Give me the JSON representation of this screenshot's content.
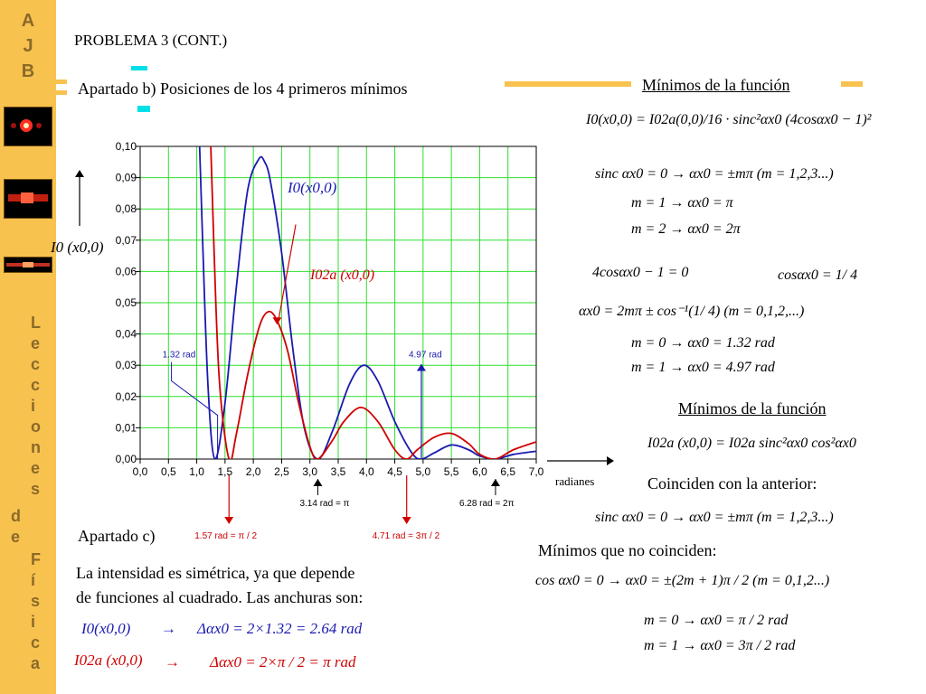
{
  "sidebar": {
    "logo_letters": [
      "A",
      "J",
      "B"
    ],
    "vertical_text": [
      "L",
      "e",
      "c",
      "c",
      "i",
      "o",
      "n",
      "e",
      "s",
      "d",
      "e",
      "F",
      "í",
      "s",
      "i",
      "c",
      "a"
    ]
  },
  "header": {
    "title": "PROBLEMA 3 (CONT.)",
    "section_b": "Apartado b) Posiciones de los 4 primeros mínimos"
  },
  "chart_data": {
    "type": "line",
    "xlabel": "radianes",
    "ylabel": "I0(x0,0)",
    "xlim": [
      0,
      7
    ],
    "ylim": [
      0,
      0.1
    ],
    "x_ticks": [
      "0,0",
      "0,5",
      "1,0",
      "1,5",
      "2,0",
      "2,5",
      "3,0",
      "3,5",
      "4,0",
      "4,5",
      "5,0",
      "5,5",
      "6,0",
      "6,5",
      "7,0"
    ],
    "y_ticks": [
      "0,00",
      "0,01",
      "0,02",
      "0,03",
      "0,04",
      "0,05",
      "0,06",
      "0,07",
      "0,08",
      "0,09",
      "0,10"
    ],
    "grid": true,
    "series": [
      {
        "name": "I0(x0,0)",
        "color": "#1a1ab0",
        "x": [
          1.0,
          1.1,
          1.2,
          1.32,
          1.5,
          1.7,
          1.9,
          2.1,
          2.2,
          2.3,
          2.5,
          2.7,
          2.9,
          3.14,
          3.4,
          3.7,
          3.95,
          4.2,
          4.5,
          4.8,
          4.97,
          5.2,
          5.5,
          5.8,
          6.0,
          6.28,
          6.6,
          7.0
        ],
        "y": [
          0.13,
          0.072,
          0.023,
          0.0,
          0.018,
          0.055,
          0.086,
          0.096,
          0.095,
          0.089,
          0.066,
          0.035,
          0.01,
          0.0,
          0.009,
          0.024,
          0.03,
          0.025,
          0.012,
          0.002,
          0.0,
          0.002,
          0.0045,
          0.003,
          0.001,
          0.0,
          0.0015,
          0.0025
        ]
      },
      {
        "name": "I02a(x0,0)",
        "color": "#d00000",
        "x": [
          1.2,
          1.3,
          1.4,
          1.57,
          1.7,
          1.9,
          2.1,
          2.25,
          2.4,
          2.6,
          2.8,
          3.0,
          3.14,
          3.4,
          3.6,
          3.9,
          4.2,
          4.5,
          4.71,
          4.9,
          5.2,
          5.5,
          5.8,
          6.0,
          6.28,
          6.6,
          7.0
        ],
        "y": [
          0.13,
          0.07,
          0.025,
          0.0,
          0.008,
          0.027,
          0.042,
          0.047,
          0.045,
          0.035,
          0.018,
          0.004,
          0.0,
          0.006,
          0.012,
          0.0165,
          0.012,
          0.003,
          0.0,
          0.003,
          0.007,
          0.0082,
          0.005,
          0.0015,
          0.0,
          0.003,
          0.0055
        ]
      }
    ],
    "annotations": {
      "label_132": "1.32  rad",
      "label_497": "4.97  rad",
      "label_314": "3.14  rad = π",
      "label_628": "6.28  rad = 2π",
      "label_157": "1.57  rad = π / 2",
      "label_471": "4.71  rad = 3π / 2"
    }
  },
  "chart_labels": {
    "curve_blue": "I0(x0,0)",
    "curve_red": "I02a (x0,0)",
    "y_axis_label": "I0 (x0,0)",
    "x_axis_label": "radianes"
  },
  "right_panel": {
    "heading1": "Mínimos de la función",
    "eq1": "I0(x0,0) = I02a(0,0)/16 · sinc²αx0 (4cosαx0 − 1)²",
    "eq2": "sinc αx0 = 0  →  αx0 = ±mπ  (m = 1,2,3...)",
    "eq3": "m = 1     →     αx0 = π",
    "eq4": "m = 2     →     αx0 = 2π",
    "eq5a": "4cosαx0 − 1 = 0",
    "eq5b": "cosαx0 = 1/ 4",
    "eq6": "αx0 = 2mπ ± cos⁻¹(1/ 4)   (m = 0,1,2,...)",
    "eq7": "m = 0  →     αx0 = 1.32 rad",
    "eq8": "m = 1  →     αx0 = 4.97 rad",
    "heading2": "Mínimos de la función",
    "eq9": "I02a (x0,0) = I02a sinc²αx0 cos²αx0",
    "coinciden": "Coinciden con la anterior:",
    "eq10": "sinc αx0 = 0  →  αx0 = ±mπ  (m = 1,2,3...)",
    "no_coinciden": "Mínimos que no coinciden:",
    "eq11": "cos αx0 = 0  →  αx0 = ±(2m + 1)π / 2  (m = 0,1,2...)",
    "eq12": "m = 0  →     αx0 = π / 2 rad",
    "eq13": "m = 1  →     αx0 = 3π / 2 rad"
  },
  "section_c": {
    "title": "Apartado c)",
    "text1": "La intensidad es simétrica, ya que depende",
    "text2": "de funciones al cuadrado. Las anchuras son:",
    "row1_left": "I0(x0,0)",
    "row1_right": "Δαx0 = 2×1.32 = 2.64 rad",
    "row2_left": "I02a (x0,0)",
    "row2_right": "Δαx0 = 2×π / 2 = π rad",
    "arrow": "→"
  }
}
